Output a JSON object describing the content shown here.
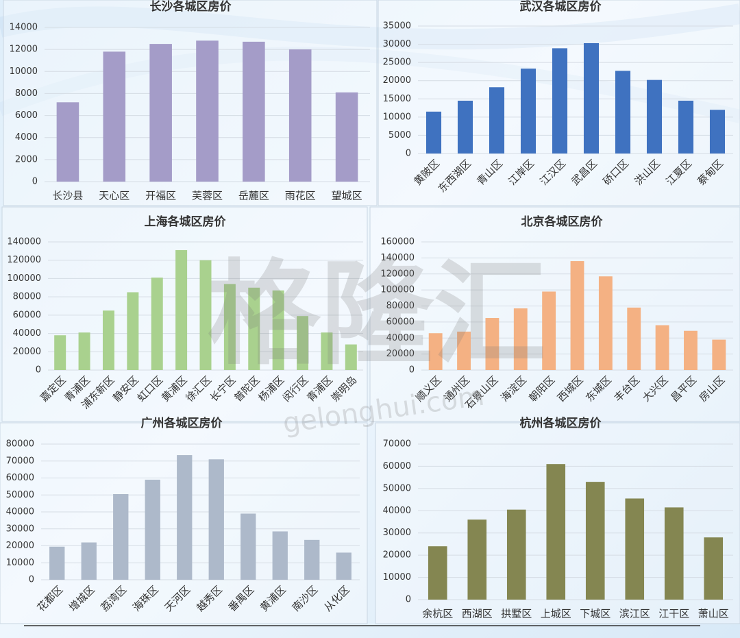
{
  "chart_data": [
    {
      "type": "bar",
      "title": "长沙各城区房价",
      "categories": [
        "长沙县",
        "天心区",
        "开福区",
        "芙蓉区",
        "岳麓区",
        "雨花区",
        "望城区"
      ],
      "values": [
        7200,
        11800,
        12500,
        12800,
        12700,
        12000,
        8100
      ],
      "color": "#a49cc8",
      "ylim": [
        0,
        14000
      ],
      "yticks": [
        0,
        2000,
        4000,
        6000,
        8000,
        10000,
        12000,
        14000
      ],
      "grid": true
    },
    {
      "type": "bar",
      "title": "武汉各城区房价",
      "categories": [
        "黄陂区",
        "东西湖区",
        "青山区",
        "江岸区",
        "江汉区",
        "武昌区",
        "硚口区",
        "洪山区",
        "江夏区",
        "蔡甸区"
      ],
      "values": [
        11500,
        14500,
        18200,
        23300,
        28900,
        30300,
        22700,
        20200,
        14500,
        12000
      ],
      "color": "#3f72c0",
      "ylim": [
        0,
        35000
      ],
      "yticks": [
        0,
        5000,
        10000,
        15000,
        20000,
        25000,
        30000,
        35000
      ],
      "grid": true
    },
    {
      "type": "bar",
      "title": "上海各城区房价",
      "categories": [
        "嘉定区",
        "青浦区",
        "浦东新区",
        "静安区",
        "虹口区",
        "黄浦区",
        "徐汇区",
        "长宁区",
        "普陀区",
        "杨浦区",
        "闵行区",
        "青浦区",
        "崇明岛"
      ],
      "values": [
        38000,
        41000,
        65000,
        85000,
        101000,
        131000,
        120000,
        94000,
        90000,
        87000,
        59000,
        41000,
        28000
      ],
      "color": "#a9d18e",
      "ylim": [
        0,
        140000
      ],
      "yticks": [
        0,
        20000,
        40000,
        60000,
        80000,
        100000,
        120000,
        140000
      ],
      "grid": true
    },
    {
      "type": "bar",
      "title": "北京各城区房价",
      "categories": [
        "顺义区",
        "通州区",
        "石景山区",
        "海淀区",
        "朝阳区",
        "西城区",
        "东城区",
        "丰台区",
        "大兴区",
        "昌平区",
        "房山区"
      ],
      "values": [
        46000,
        48000,
        65000,
        77000,
        98000,
        136000,
        117000,
        78000,
        56000,
        49000,
        38000
      ],
      "color": "#f4b183",
      "ylim": [
        0,
        160000
      ],
      "yticks": [
        0,
        20000,
        40000,
        60000,
        80000,
        100000,
        120000,
        140000,
        160000
      ],
      "grid": true
    },
    {
      "type": "bar",
      "title": "广州各城区房价",
      "categories": [
        "花都区",
        "增城区",
        "荔湾区",
        "海珠区",
        "天河区",
        "越秀区",
        "番禺区",
        "黄浦区",
        "南沙区",
        "从化区"
      ],
      "values": [
        19500,
        22000,
        50500,
        59000,
        73500,
        71000,
        39000,
        28500,
        23500,
        16000
      ],
      "color": "#adb9ca",
      "ylim": [
        0,
        80000
      ],
      "yticks": [
        0,
        10000,
        20000,
        30000,
        40000,
        50000,
        60000,
        70000,
        80000
      ],
      "grid": true
    },
    {
      "type": "bar",
      "title": "杭州各城区房价",
      "categories": [
        "余杭区",
        "西湖区",
        "拱墅区",
        "上城区",
        "下城区",
        "滨江区",
        "江干区",
        "萧山区"
      ],
      "values": [
        24000,
        36000,
        40500,
        61000,
        53000,
        45500,
        41500,
        28000
      ],
      "color": "#848651",
      "ylim": [
        0,
        70000
      ],
      "yticks": [
        0,
        10000,
        20000,
        30000,
        40000,
        50000,
        60000,
        70000
      ],
      "grid": true
    }
  ],
  "watermark": {
    "logo": "格隆汇",
    "site": "gelonghui.com"
  }
}
